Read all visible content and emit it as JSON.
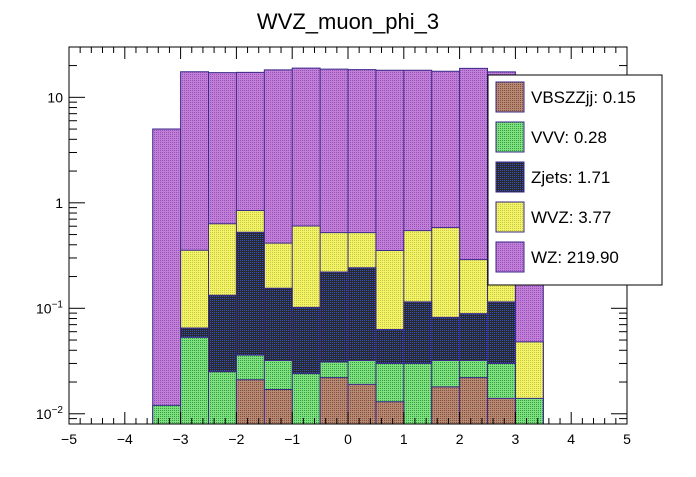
{
  "chart_data": {
    "type": "bar",
    "stacked": true,
    "title": "WVZ_muon_phi_3",
    "xlabel": "",
    "ylabel": "",
    "x_range": [
      -5,
      5
    ],
    "y_scale": "log",
    "y_range": [
      0.008,
      30
    ],
    "bin_edges": [
      -3.5,
      -3.0,
      -2.5,
      -2.0,
      -1.5,
      -1.0,
      -0.5,
      0.0,
      0.5,
      1.0,
      1.5,
      2.0,
      2.5,
      3.0,
      3.5
    ],
    "x_ticks": [
      "−5",
      "−4",
      "−3",
      "−2",
      "−1",
      "0",
      "1",
      "2",
      "3",
      "4",
      "5"
    ],
    "y_ticks": [
      {
        "base": "10",
        "exp": "−2",
        "value": 0.01
      },
      {
        "base": "10",
        "exp": "−1",
        "value": 0.1
      },
      {
        "base": "1",
        "exp": "",
        "value": 1
      },
      {
        "base": "10",
        "exp": "",
        "value": 10
      }
    ],
    "legend_position": "right",
    "series": [
      {
        "name": "VBSZZjj",
        "legend": "VBSZZjj: 0.15",
        "color": "#b58a74",
        "values": [
          0.0,
          0.0,
          0.008,
          0.021,
          0.017,
          0.0,
          0.022,
          0.019,
          0.013,
          0.008,
          0.018,
          0.022,
          0.014,
          0.0
        ]
      },
      {
        "name": "VVV",
        "legend": "VVV: 0.28",
        "color": "#80e080",
        "values": [
          0.012,
          0.053,
          0.017,
          0.015,
          0.015,
          0.024,
          0.009,
          0.013,
          0.017,
          0.022,
          0.014,
          0.01,
          0.016,
          0.014
        ]
      },
      {
        "name": "Zjets",
        "legend": "Zjets: 1.71",
        "color": "#2a2a2a",
        "values": [
          0.0,
          0.012,
          0.108,
          0.49,
          0.123,
          0.078,
          0.19,
          0.21,
          0.033,
          0.085,
          0.05,
          0.057,
          0.085,
          0.0
        ]
      },
      {
        "name": "WVZ",
        "legend": "WVZ: 3.77",
        "color": "#f3f36a",
        "values": [
          0.0,
          0.29,
          0.5,
          0.32,
          0.26,
          0.5,
          0.3,
          0.28,
          0.29,
          0.43,
          0.5,
          0.2,
          0.1,
          0.034
        ]
      },
      {
        "name": "WZ",
        "legend": "WZ: 219.90",
        "color": "#c080d8",
        "values": [
          5.0,
          17.1,
          16.5,
          16.4,
          17.8,
          18.3,
          18.0,
          17.8,
          17.7,
          17.5,
          17.1,
          18.5,
          17.2,
          0.13
        ]
      }
    ]
  }
}
